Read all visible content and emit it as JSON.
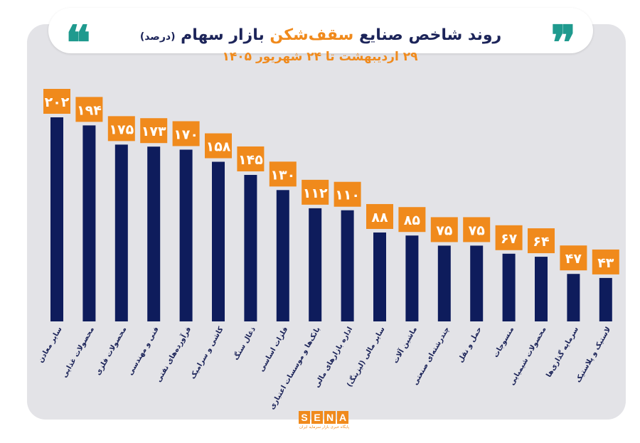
{
  "header": {
    "title_part1": "روند شاخص صنایع",
    "title_highlight": "سقف‌شکن",
    "title_part2": "بازار سهام",
    "title_unit": "(درصد)",
    "subtitle": "۲۹ اردیبهشت تا ۲۴ شهریور ۱۴۰۵",
    "quote_left": "❝",
    "quote_right": "❞"
  },
  "logo": {
    "letters": [
      "S",
      "E",
      "N",
      "A"
    ],
    "tagline": "پایگاه خبری بازار سرمایه ایران"
  },
  "colors": {
    "bar": "#0e1c5c",
    "label_box": "#f08a1c",
    "label_text": "#ffffff",
    "title": "#1c2459",
    "accent": "#f08a1c",
    "quote": "#1f9a8e",
    "panel": "#e3e3e7"
  },
  "chart_data": {
    "type": "bar",
    "categories": [
      "سایر معادن",
      "محصولات غذایی",
      "محصولات فلزی",
      "فنی و مهندسی",
      "فرآورده‌های نفتی",
      "کاشی و سرامیک",
      "ذغال سنگ",
      "فلزات اساسی",
      "بانک‌ها و موسسات اعتباری",
      "اداره بازارهای مالی",
      "سایر مالی (لیزینگ)",
      "ماشین آلات",
      "چندرشته‌ای صنعتی",
      "حمل و نقل",
      "منسوجات",
      "محصولات شیمیایی",
      "سرمایه گذاری‌ها",
      "لاستیک و پلاستیک"
    ],
    "values": [
      202,
      194,
      175,
      173,
      170,
      158,
      145,
      130,
      112,
      110,
      88,
      85,
      75,
      75,
      67,
      64,
      47,
      43
    ],
    "value_labels": [
      "۲۰۲",
      "۱۹۴",
      "۱۷۵",
      "۱۷۳",
      "۱۷۰",
      "۱۵۸",
      "۱۴۵",
      "۱۳۰",
      "۱۱۲",
      "۱۱۰",
      "۸۸",
      "۸۵",
      "۷۵",
      "۷۵",
      "۶۷",
      "۶۴",
      "۴۷",
      "۴۳"
    ],
    "ylim": [
      0,
      202
    ],
    "grid": false,
    "legend": "none"
  }
}
